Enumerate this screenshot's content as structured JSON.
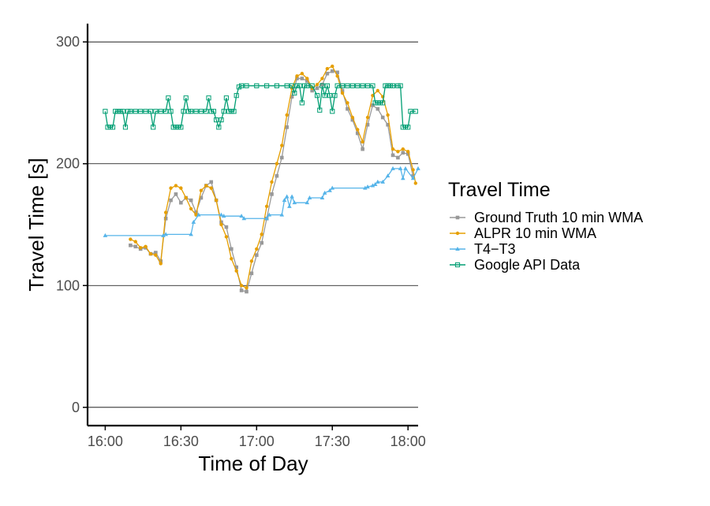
{
  "chart_data": {
    "type": "line",
    "xlabel": "Time of Day",
    "ylabel": "Travel Time [s]",
    "x_unit": "minutes since 16:00",
    "xlim": [
      -7,
      124
    ],
    "ylim": [
      -15,
      315
    ],
    "x_ticks": [
      {
        "value": 0,
        "label": "16:00"
      },
      {
        "value": 30,
        "label": "16:30"
      },
      {
        "value": 60,
        "label": "17:00"
      },
      {
        "value": 90,
        "label": "17:30"
      },
      {
        "value": 120,
        "label": "18:00"
      }
    ],
    "y_ticks": [
      {
        "value": 0,
        "label": "0"
      },
      {
        "value": 100,
        "label": "100"
      },
      {
        "value": 200,
        "label": "200"
      },
      {
        "value": 300,
        "label": "300"
      }
    ],
    "grid": "horizontal major lines",
    "legend": {
      "title": "Travel Time",
      "position": "right"
    },
    "series": [
      {
        "name": "Ground Truth 10 min WMA",
        "color": "#999999",
        "marker": "square",
        "points": [
          [
            10,
            133
          ],
          [
            12,
            132
          ],
          [
            14,
            130
          ],
          [
            16,
            131
          ],
          [
            18,
            126
          ],
          [
            20,
            127
          ],
          [
            22,
            120
          ],
          [
            24,
            155
          ],
          [
            26,
            170
          ],
          [
            28,
            175
          ],
          [
            30,
            168
          ],
          [
            32,
            172
          ],
          [
            34,
            170
          ],
          [
            36,
            160
          ],
          [
            38,
            172
          ],
          [
            40,
            182
          ],
          [
            42,
            185
          ],
          [
            44,
            170
          ],
          [
            46,
            152
          ],
          [
            48,
            148
          ],
          [
            50,
            130
          ],
          [
            52,
            115
          ],
          [
            54,
            96
          ],
          [
            56,
            95
          ],
          [
            58,
            110
          ],
          [
            60,
            125
          ],
          [
            62,
            135
          ],
          [
            64,
            155
          ],
          [
            66,
            175
          ],
          [
            68,
            190
          ],
          [
            70,
            205
          ],
          [
            72,
            230
          ],
          [
            74,
            255
          ],
          [
            76,
            270
          ],
          [
            78,
            270
          ],
          [
            80,
            268
          ],
          [
            82,
            260
          ],
          [
            84,
            262
          ],
          [
            86,
            265
          ],
          [
            88,
            274
          ],
          [
            90,
            276
          ],
          [
            92,
            275
          ],
          [
            94,
            260
          ],
          [
            96,
            245
          ],
          [
            98,
            236
          ],
          [
            100,
            225
          ],
          [
            102,
            212
          ],
          [
            104,
            232
          ],
          [
            106,
            248
          ],
          [
            108,
            245
          ],
          [
            110,
            238
          ],
          [
            112,
            232
          ],
          [
            114,
            207
          ],
          [
            116,
            205
          ],
          [
            118,
            209
          ],
          [
            120,
            208
          ],
          [
            122,
            190
          ]
        ]
      },
      {
        "name": "ALPR 10 min WMA",
        "color": "#E69F00",
        "marker": "circle",
        "points": [
          [
            10,
            138
          ],
          [
            12,
            136
          ],
          [
            14,
            131
          ],
          [
            16,
            132
          ],
          [
            18,
            126
          ],
          [
            20,
            125
          ],
          [
            22,
            118
          ],
          [
            24,
            160
          ],
          [
            26,
            180
          ],
          [
            28,
            182
          ],
          [
            30,
            180
          ],
          [
            32,
            172
          ],
          [
            34,
            163
          ],
          [
            36,
            158
          ],
          [
            38,
            178
          ],
          [
            40,
            182
          ],
          [
            42,
            180
          ],
          [
            44,
            170
          ],
          [
            46,
            150
          ],
          [
            48,
            140
          ],
          [
            50,
            122
          ],
          [
            52,
            112
          ],
          [
            54,
            100
          ],
          [
            56,
            98
          ],
          [
            58,
            120
          ],
          [
            60,
            130
          ],
          [
            62,
            142
          ],
          [
            64,
            165
          ],
          [
            66,
            185
          ],
          [
            68,
            200
          ],
          [
            70,
            215
          ],
          [
            72,
            240
          ],
          [
            74,
            262
          ],
          [
            76,
            272
          ],
          [
            78,
            274
          ],
          [
            80,
            270
          ],
          [
            82,
            262
          ],
          [
            84,
            265
          ],
          [
            86,
            270
          ],
          [
            88,
            278
          ],
          [
            90,
            280
          ],
          [
            92,
            272
          ],
          [
            94,
            258
          ],
          [
            96,
            250
          ],
          [
            98,
            238
          ],
          [
            100,
            228
          ],
          [
            102,
            218
          ],
          [
            104,
            238
          ],
          [
            106,
            256
          ],
          [
            108,
            260
          ],
          [
            110,
            255
          ],
          [
            112,
            240
          ],
          [
            114,
            212
          ],
          [
            116,
            210
          ],
          [
            118,
            212
          ],
          [
            120,
            210
          ],
          [
            122,
            195
          ],
          [
            123,
            184
          ]
        ]
      },
      {
        "name": "T4−T3",
        "color": "#56B4E9",
        "marker": "triangle",
        "points": [
          [
            0,
            141
          ],
          [
            23,
            141
          ],
          [
            24,
            142
          ],
          [
            34,
            142
          ],
          [
            35,
            152
          ],
          [
            37,
            158
          ],
          [
            46,
            158
          ],
          [
            47,
            157
          ],
          [
            54,
            157
          ],
          [
            55,
            155
          ],
          [
            64,
            155
          ],
          [
            65,
            158
          ],
          [
            70,
            158
          ],
          [
            71,
            170
          ],
          [
            72,
            173
          ],
          [
            73,
            165
          ],
          [
            74,
            173
          ],
          [
            75,
            168
          ],
          [
            80,
            168
          ],
          [
            81,
            172
          ],
          [
            86,
            172
          ],
          [
            87,
            176
          ],
          [
            89,
            178
          ],
          [
            90,
            180
          ],
          [
            103,
            180
          ],
          [
            104,
            181
          ],
          [
            106,
            182
          ],
          [
            107,
            183
          ],
          [
            108,
            185
          ],
          [
            110,
            185
          ],
          [
            112,
            190
          ],
          [
            114,
            196
          ],
          [
            117,
            196
          ],
          [
            118,
            188
          ],
          [
            119,
            196
          ],
          [
            124,
            196
          ],
          [
            122,
            188
          ]
        ]
      },
      {
        "name": "Google API Data",
        "color": "#009E73",
        "marker": "square-open",
        "points": [
          [
            0,
            243
          ],
          [
            1,
            230
          ],
          [
            2,
            230
          ],
          [
            3,
            230
          ],
          [
            4,
            243
          ],
          [
            5,
            243
          ],
          [
            6,
            243
          ],
          [
            7,
            243
          ],
          [
            8,
            230
          ],
          [
            9,
            243
          ],
          [
            10,
            243
          ],
          [
            12,
            243
          ],
          [
            14,
            243
          ],
          [
            16,
            243
          ],
          [
            18,
            243
          ],
          [
            19,
            230
          ],
          [
            20,
            243
          ],
          [
            22,
            243
          ],
          [
            24,
            243
          ],
          [
            25,
            254
          ],
          [
            26,
            243
          ],
          [
            27,
            230
          ],
          [
            28,
            230
          ],
          [
            29,
            230
          ],
          [
            30,
            230
          ],
          [
            31,
            243
          ],
          [
            32,
            254
          ],
          [
            33,
            243
          ],
          [
            34,
            243
          ],
          [
            36,
            243
          ],
          [
            38,
            243
          ],
          [
            40,
            243
          ],
          [
            41,
            254
          ],
          [
            42,
            243
          ],
          [
            43,
            243
          ],
          [
            44,
            236
          ],
          [
            45,
            230
          ],
          [
            46,
            236
          ],
          [
            47,
            243
          ],
          [
            48,
            254
          ],
          [
            49,
            243
          ],
          [
            50,
            243
          ],
          [
            51,
            243
          ],
          [
            52,
            256
          ],
          [
            53,
            263
          ],
          [
            54,
            264
          ],
          [
            56,
            264
          ],
          [
            60,
            264
          ],
          [
            64,
            264
          ],
          [
            68,
            264
          ],
          [
            72,
            264
          ],
          [
            74,
            264
          ],
          [
            75,
            258
          ],
          [
            76,
            264
          ],
          [
            77,
            264
          ],
          [
            78,
            250
          ],
          [
            79,
            264
          ],
          [
            80,
            264
          ],
          [
            82,
            264
          ],
          [
            84,
            256
          ],
          [
            85,
            244
          ],
          [
            86,
            264
          ],
          [
            87,
            256
          ],
          [
            88,
            264
          ],
          [
            89,
            256
          ],
          [
            90,
            243
          ],
          [
            91,
            256
          ],
          [
            92,
            264
          ],
          [
            94,
            264
          ],
          [
            96,
            264
          ],
          [
            98,
            264
          ],
          [
            100,
            264
          ],
          [
            102,
            264
          ],
          [
            104,
            264
          ],
          [
            106,
            264
          ],
          [
            107,
            250
          ],
          [
            108,
            250
          ],
          [
            109,
            250
          ],
          [
            110,
            250
          ],
          [
            111,
            264
          ],
          [
            112,
            264
          ],
          [
            113,
            264
          ],
          [
            114,
            264
          ],
          [
            116,
            264
          ],
          [
            117,
            264
          ],
          [
            118,
            230
          ],
          [
            119,
            230
          ],
          [
            120,
            230
          ],
          [
            121,
            243
          ],
          [
            123,
            243
          ]
        ]
      }
    ]
  }
}
